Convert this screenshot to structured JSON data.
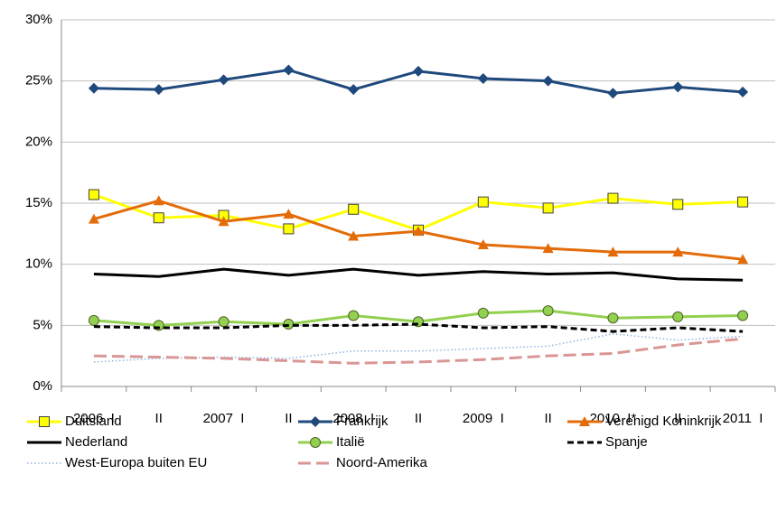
{
  "chart_data": {
    "type": "line",
    "categories": [
      "2006  I",
      "II",
      "2007  I",
      "II",
      "2008  I",
      "II",
      "2009  I",
      "II",
      "2010  I*",
      "II",
      "2011  I"
    ],
    "ylim": [
      0,
      30
    ],
    "yticks": [
      {
        "value": 0,
        "label": "0%"
      },
      {
        "value": 5,
        "label": "5%"
      },
      {
        "value": 10,
        "label": "10%"
      },
      {
        "value": 15,
        "label": "15%"
      },
      {
        "value": 20,
        "label": "20%"
      },
      {
        "value": 25,
        "label": "25%"
      },
      {
        "value": 30,
        "label": "30%"
      }
    ],
    "grid": true,
    "legend": "bottom",
    "series": [
      {
        "name": "Duitsland",
        "color": "#ffff00",
        "marker": "square",
        "values": [
          15.7,
          13.8,
          14.0,
          12.9,
          14.5,
          12.8,
          15.1,
          14.6,
          15.4,
          14.9,
          15.1
        ]
      },
      {
        "name": "Frankrijk",
        "color": "#1f497d",
        "marker": "diamond",
        "values": [
          24.4,
          24.3,
          25.1,
          25.9,
          24.3,
          25.8,
          25.2,
          25.0,
          24.0,
          24.5,
          24.1
        ]
      },
      {
        "name": "Verenigd Koninkrijk",
        "color": "#e36c09",
        "marker": "triangle",
        "values": [
          13.7,
          15.2,
          13.5,
          14.1,
          12.3,
          12.7,
          11.6,
          11.3,
          11.0,
          11.0,
          10.4
        ]
      },
      {
        "name": "Nederland",
        "color": "#000000",
        "values": [
          9.2,
          9.0,
          9.6,
          9.1,
          9.6,
          9.1,
          9.4,
          9.2,
          9.3,
          8.8,
          8.7
        ]
      },
      {
        "name": "Italië",
        "color": "#92d050",
        "marker": "circle",
        "values": [
          5.4,
          5.0,
          5.3,
          5.1,
          5.8,
          5.3,
          6.0,
          6.2,
          5.6,
          5.7,
          5.8
        ]
      },
      {
        "name": "Spanje",
        "color": "#000000",
        "dash": "dashed",
        "values": [
          4.9,
          4.8,
          4.8,
          5.0,
          5.0,
          5.1,
          4.8,
          4.9,
          4.5,
          4.8,
          4.5
        ]
      },
      {
        "name": "West-Europa buiten EU",
        "color": "#8eb4e3",
        "dash": "dotted",
        "values": [
          2.0,
          2.3,
          2.4,
          2.3,
          2.9,
          2.9,
          3.1,
          3.3,
          4.3,
          3.8,
          4.1
        ]
      },
      {
        "name": "Noord-Amerika",
        "color": "#d99694",
        "dash": "longdash",
        "values": [
          2.5,
          2.4,
          2.3,
          2.1,
          1.9,
          2.0,
          2.2,
          2.5,
          2.7,
          3.4,
          3.9
        ]
      }
    ]
  }
}
